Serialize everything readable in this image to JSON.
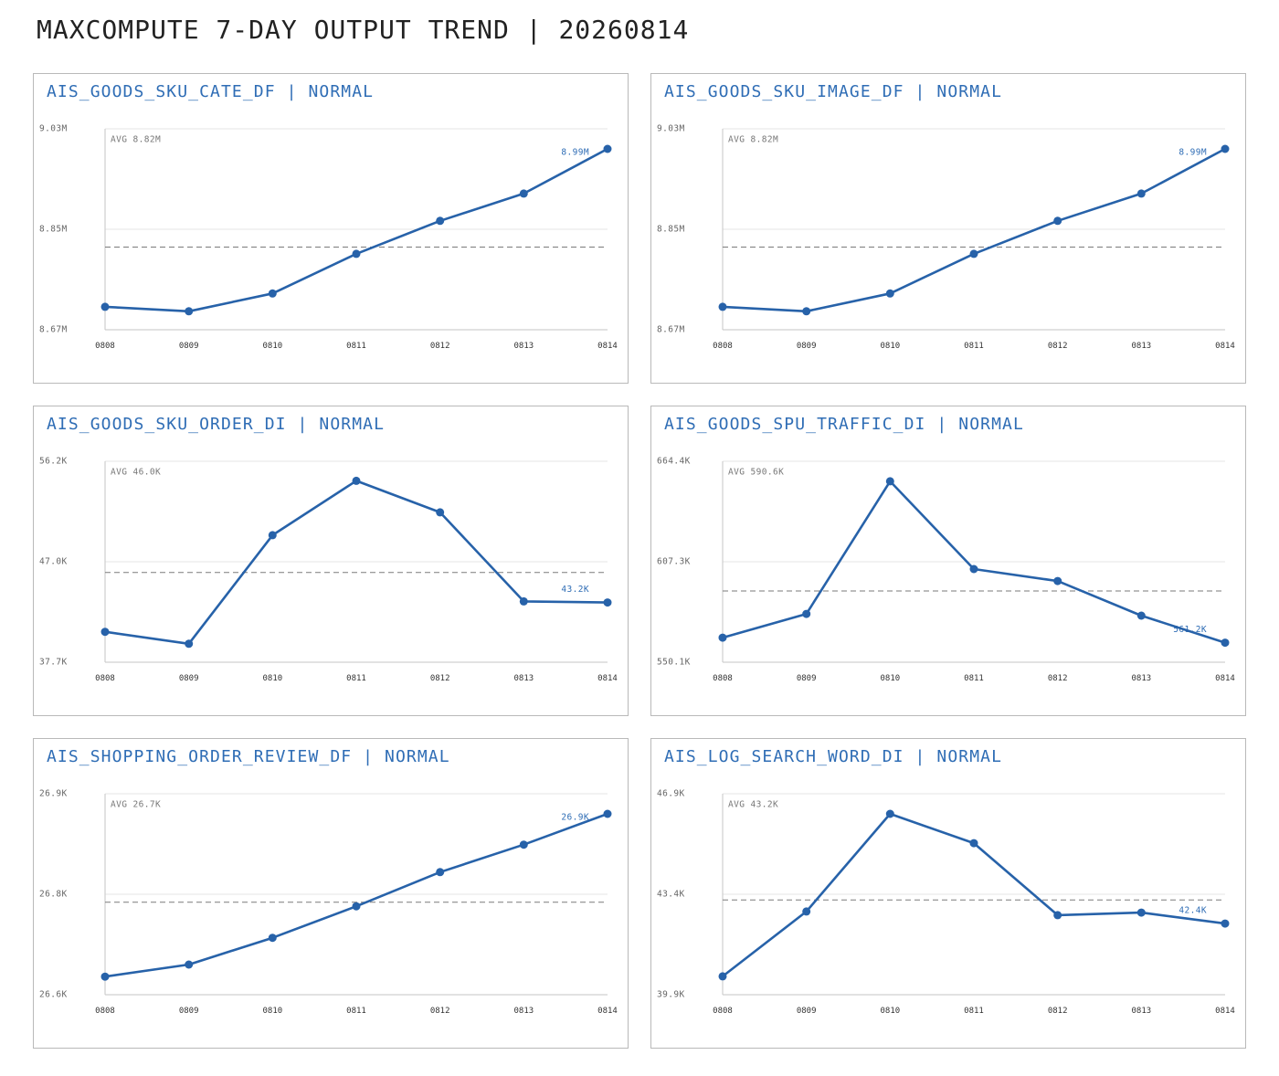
{
  "page_title": "MAXCOMPUTE 7-DAY OUTPUT TREND | 20260814",
  "colors": {
    "page_title": "#222222",
    "panel_title": "#2f6db5",
    "panel_border": "#b9b9b9",
    "line": "#2762a9",
    "last_label": "#2f6db5",
    "axis": "#c6c6c6",
    "grid": "#e4e4e4",
    "axis_text": "#666666",
    "xtick_text": "#333333",
    "avg_line": "#7a7a7a",
    "avg_text": "#777777"
  },
  "chart_data": [
    {
      "type": "line",
      "title": "AIS_GOODS_SKU_CATE_DF | NORMAL",
      "categories": [
        "0808",
        "0809",
        "0810",
        "0811",
        "0812",
        "0813",
        "0814"
      ],
      "series": [
        {
          "values": [
            8.711,
            8.703,
            8.735,
            8.806,
            8.865,
            8.914,
            8.994
          ]
        }
      ],
      "ylim": [
        8.67,
        9.03
      ],
      "ytick_labels": [
        "9.03M",
        "8.85M",
        "8.67M"
      ],
      "grid": true,
      "avg": 8.818,
      "avg_label": "AVG 8.82M",
      "last_label": "8.99M"
    },
    {
      "type": "line",
      "title": "AIS_GOODS_SKU_IMAGE_DF | NORMAL",
      "categories": [
        "0808",
        "0809",
        "0810",
        "0811",
        "0812",
        "0813",
        "0814"
      ],
      "series": [
        {
          "values": [
            8.711,
            8.703,
            8.735,
            8.806,
            8.865,
            8.914,
            8.994
          ]
        }
      ],
      "ylim": [
        8.67,
        9.03
      ],
      "ytick_labels": [
        "9.03M",
        "8.85M",
        "8.67M"
      ],
      "grid": true,
      "avg": 8.818,
      "avg_label": "AVG 8.82M",
      "last_label": "8.99M"
    },
    {
      "type": "line",
      "title": "AIS_GOODS_SKU_ORDER_DI | NORMAL",
      "categories": [
        "0808",
        "0809",
        "0810",
        "0811",
        "0812",
        "0813",
        "0814"
      ],
      "series": [
        {
          "values": [
            40.5,
            39.4,
            49.4,
            54.4,
            51.5,
            43.3,
            43.2
          ]
        }
      ],
      "ylim": [
        37.7,
        56.2
      ],
      "ytick_labels": [
        "56.2K",
        "47.0K",
        "37.7K"
      ],
      "grid": true,
      "avg": 45.96,
      "avg_label": "AVG 46.0K",
      "last_label": "43.2K"
    },
    {
      "type": "line",
      "title": "AIS_GOODS_SPU_TRAFFIC_DI | NORMAL",
      "categories": [
        "0808",
        "0809",
        "0810",
        "0811",
        "0812",
        "0813",
        "0814"
      ],
      "series": [
        {
          "values": [
            564.1,
            577.6,
            653.0,
            603.1,
            596.3,
            576.6,
            561.2
          ]
        }
      ],
      "ylim": [
        550.1,
        664.4
      ],
      "ytick_labels": [
        "664.4K",
        "607.3K",
        "550.1K"
      ],
      "grid": true,
      "avg": 590.6,
      "avg_label": "AVG 590.6K",
      "last_label": "561.2K"
    },
    {
      "type": "line",
      "title": "AIS_SHOPPING_ORDER_REVIEW_DF | NORMAL",
      "categories": [
        "0808",
        "0809",
        "0810",
        "0811",
        "0812",
        "0813",
        "0814"
      ],
      "series": [
        {
          "values": [
            26.627,
            26.645,
            26.685,
            26.732,
            26.783,
            26.824,
            26.87
          ]
        }
      ],
      "ylim": [
        26.6,
        26.9
      ],
      "ytick_labels": [
        "26.9K",
        "26.8K",
        "26.6K"
      ],
      "grid": true,
      "avg": 26.738,
      "avg_label": "AVG 26.7K",
      "last_label": "26.9K"
    },
    {
      "type": "line",
      "title": "AIS_LOG_SEARCH_WORD_DI | NORMAL",
      "categories": [
        "0808",
        "0809",
        "0810",
        "0811",
        "0812",
        "0813",
        "0814"
      ],
      "series": [
        {
          "values": [
            40.54,
            42.8,
            46.2,
            45.18,
            42.67,
            42.76,
            42.38
          ]
        }
      ],
      "ylim": [
        39.9,
        46.9
      ],
      "ytick_labels": [
        "46.9K",
        "43.4K",
        "39.9K"
      ],
      "grid": true,
      "avg": 43.2,
      "avg_label": "AVG 43.2K",
      "last_label": "42.4K"
    }
  ]
}
